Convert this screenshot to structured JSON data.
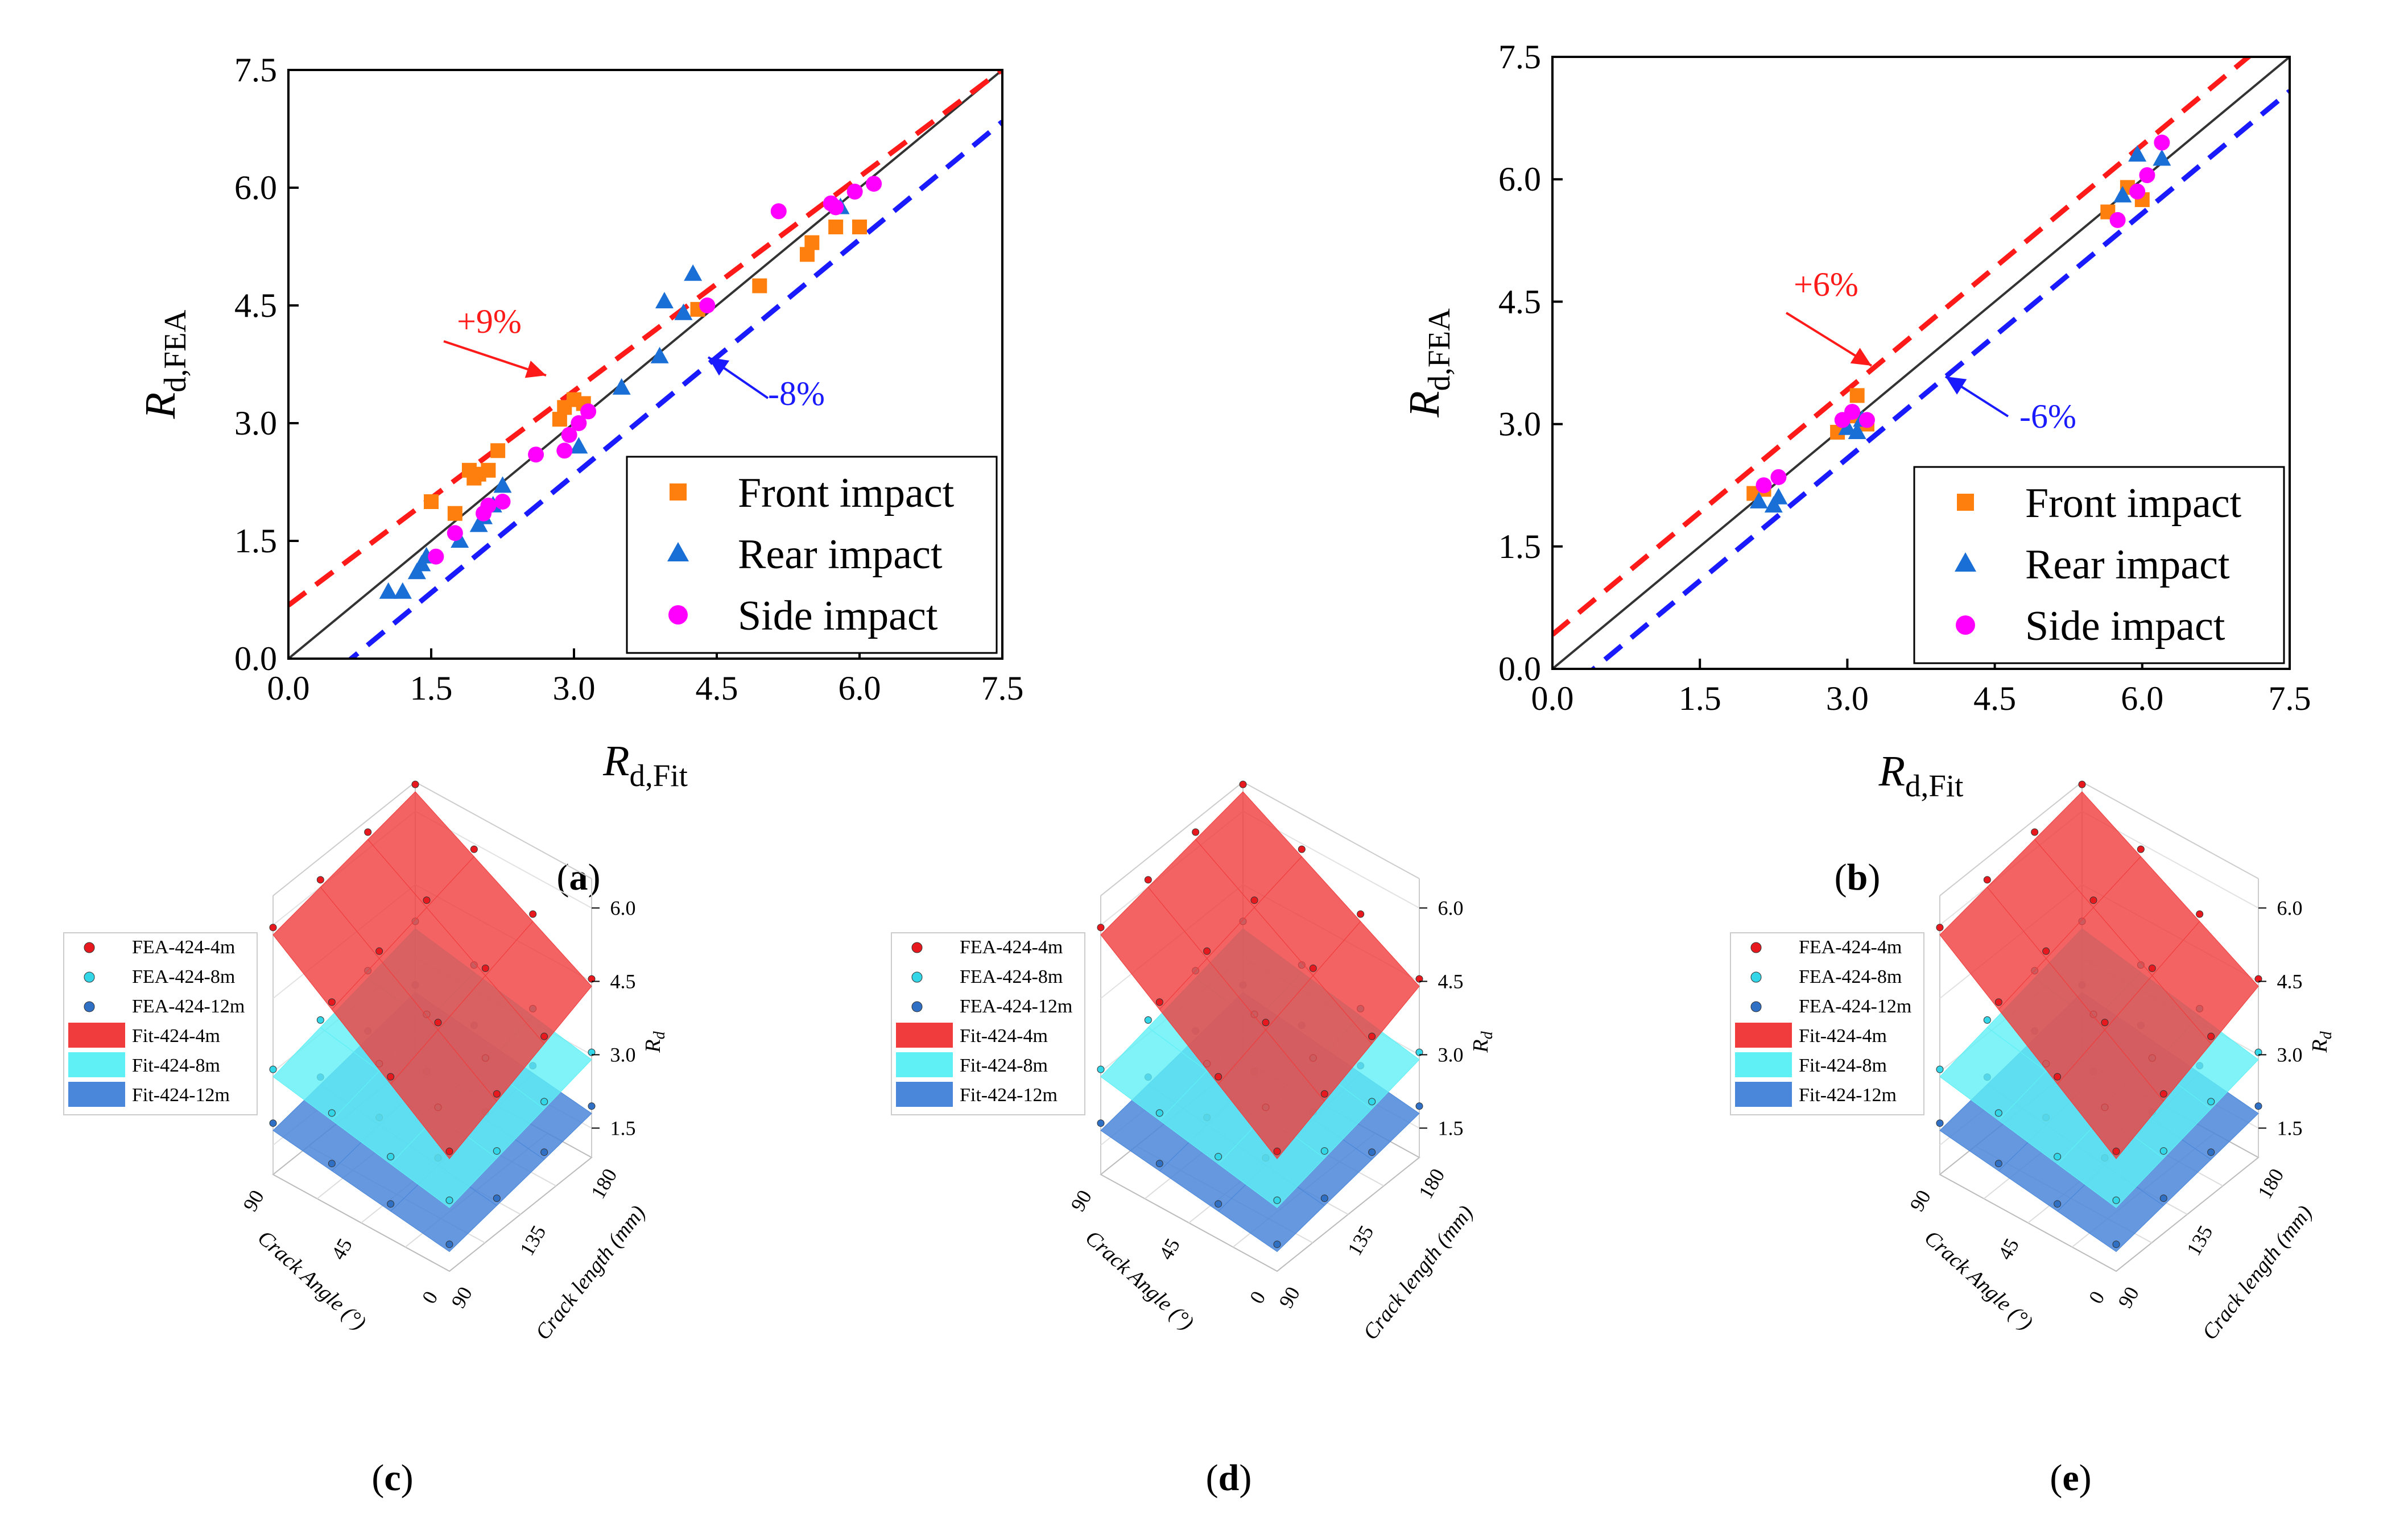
{
  "chart_data": [
    {
      "panel": "a",
      "type": "scatter",
      "caption_letter": "a",
      "xlabel": {
        "main": "R",
        "sub": "d,Fit"
      },
      "ylabel": {
        "main": "R",
        "sub": "d,FEA"
      },
      "xlim": [
        0,
        7.5
      ],
      "ylim": [
        0,
        7.5
      ],
      "xticks": [
        "0.0",
        "1.5",
        "3.0",
        "4.5",
        "6.0",
        "7.5"
      ],
      "yticks": [
        "0.0",
        "1.5",
        "3.0",
        "4.5",
        "6.0",
        "7.5"
      ],
      "legend_position": "bottom-right",
      "reference_lines": [
        {
          "label": "",
          "slope": 1.0,
          "intercept": 0,
          "style": "solid",
          "color": "#333333"
        },
        {
          "label": "+9%",
          "slope": 0.91,
          "intercept": 0.68,
          "style": "dashed",
          "color": "#ff1a1a"
        },
        {
          "label": "-8%",
          "slope": 1.0,
          "intercept": -0.66,
          "style": "dashed",
          "color": "#1a1aff"
        }
      ],
      "series": [
        {
          "name": "Front impact",
          "marker": "square",
          "color": "#ff7f0e",
          "points": [
            [
              1.5,
              2.0
            ],
            [
              1.75,
              1.85
            ],
            [
              1.9,
              2.4
            ],
            [
              1.95,
              2.3
            ],
            [
              2.0,
              2.35
            ],
            [
              2.1,
              2.4
            ],
            [
              2.2,
              2.65
            ],
            [
              2.85,
              3.05
            ],
            [
              2.9,
              3.2
            ],
            [
              3.0,
              3.3
            ],
            [
              3.1,
              3.25
            ],
            [
              4.3,
              4.45
            ],
            [
              4.95,
              4.75
            ],
            [
              5.45,
              5.15
            ],
            [
              5.5,
              5.3
            ],
            [
              5.75,
              5.5
            ],
            [
              6.0,
              5.5
            ]
          ]
        },
        {
          "name": "Rear impact",
          "marker": "triangle",
          "color": "#1a6fd6",
          "points": [
            [
              1.05,
              0.85
            ],
            [
              1.2,
              0.85
            ],
            [
              1.35,
              1.1
            ],
            [
              1.4,
              1.2
            ],
            [
              1.45,
              1.3
            ],
            [
              1.8,
              1.5
            ],
            [
              2.0,
              1.7
            ],
            [
              2.05,
              1.8
            ],
            [
              2.15,
              1.95
            ],
            [
              2.25,
              2.2
            ],
            [
              3.05,
              2.7
            ],
            [
              3.5,
              3.45
            ],
            [
              3.9,
              3.85
            ],
            [
              3.95,
              4.55
            ],
            [
              4.15,
              4.4
            ],
            [
              4.25,
              4.9
            ],
            [
              5.8,
              5.75
            ]
          ]
        },
        {
          "name": "Side impact",
          "marker": "circle",
          "color": "#ff00ff",
          "points": [
            [
              1.55,
              1.3
            ],
            [
              1.75,
              1.6
            ],
            [
              2.05,
              1.85
            ],
            [
              2.1,
              1.95
            ],
            [
              2.25,
              2.0
            ],
            [
              2.6,
              2.6
            ],
            [
              2.9,
              2.65
            ],
            [
              2.95,
              2.85
            ],
            [
              3.05,
              3.0
            ],
            [
              3.15,
              3.15
            ],
            [
              4.4,
              4.5
            ],
            [
              5.15,
              5.7
            ],
            [
              5.7,
              5.8
            ],
            [
              5.75,
              5.75
            ],
            [
              5.95,
              5.95
            ],
            [
              6.15,
              6.05
            ]
          ]
        }
      ]
    },
    {
      "panel": "b",
      "type": "scatter",
      "caption_letter": "b",
      "xlabel": {
        "main": "R",
        "sub": "d,Fit"
      },
      "ylabel": {
        "main": "R",
        "sub": "d,FEA"
      },
      "xlim": [
        0,
        7.5
      ],
      "ylim": [
        0,
        7.5
      ],
      "xticks": [
        "0.0",
        "1.5",
        "3.0",
        "4.5",
        "6.0",
        "7.5"
      ],
      "yticks": [
        "0.0",
        "1.5",
        "3.0",
        "4.5",
        "6.0",
        "7.5"
      ],
      "legend_position": "bottom-right",
      "reference_lines": [
        {
          "label": "",
          "slope": 1.0,
          "intercept": 0,
          "style": "solid",
          "color": "#333333"
        },
        {
          "label": "+6%",
          "slope": 1.0,
          "intercept": 0.42,
          "style": "dashed",
          "color": "#ff1a1a"
        },
        {
          "label": "-6%",
          "slope": 1.0,
          "intercept": -0.42,
          "style": "dashed",
          "color": "#1a1aff"
        }
      ],
      "series": [
        {
          "name": "Front impact",
          "marker": "square",
          "color": "#ff7f0e",
          "points": [
            [
              2.05,
              2.15
            ],
            [
              2.15,
              2.2
            ],
            [
              2.9,
              2.9
            ],
            [
              3.05,
              3.1
            ],
            [
              3.1,
              3.35
            ],
            [
              3.2,
              3.0
            ],
            [
              5.65,
              5.6
            ],
            [
              5.85,
              5.9
            ],
            [
              6.0,
              5.75
            ]
          ]
        },
        {
          "name": "Rear impact",
          "marker": "triangle",
          "color": "#1a6fd6",
          "points": [
            [
              2.1,
              2.05
            ],
            [
              2.25,
              2.0
            ],
            [
              2.3,
              2.1
            ],
            [
              3.0,
              2.95
            ],
            [
              3.1,
              2.9
            ],
            [
              3.15,
              3.05
            ],
            [
              5.8,
              5.8
            ],
            [
              5.95,
              6.3
            ],
            [
              6.2,
              6.25
            ]
          ]
        },
        {
          "name": "Side impact",
          "marker": "circle",
          "color": "#ff00ff",
          "points": [
            [
              2.15,
              2.25
            ],
            [
              2.3,
              2.35
            ],
            [
              2.95,
              3.05
            ],
            [
              3.05,
              3.15
            ],
            [
              3.2,
              3.05
            ],
            [
              5.75,
              5.5
            ],
            [
              5.95,
              5.85
            ],
            [
              6.05,
              6.05
            ],
            [
              6.2,
              6.45
            ]
          ]
        }
      ]
    },
    {
      "panel": "c",
      "type": "scatter3d",
      "caption_letter": "c",
      "legend": [
        "FEA-424-4m",
        "FEA-424-8m",
        "FEA-424-12m",
        "Fit-424-4m",
        "Fit-424-8m",
        "Fit-424-12m"
      ],
      "zlabel": "R",
      "zlabel_sub": "d",
      "xlabel": "Crack Angle (°)",
      "ylabel": "Crack length (mm)",
      "zticks": [
        "1.5",
        "3.0",
        "4.5",
        "6.0"
      ],
      "xticks": [
        "90",
        "45",
        "0"
      ],
      "yticks": [
        "90",
        "135",
        "180"
      ]
    },
    {
      "panel": "d",
      "type": "scatter3d",
      "caption_letter": "d",
      "legend": [
        "FEA-424-4m",
        "FEA-424-8m",
        "FEA-424-12m",
        "Fit-424-4m",
        "Fit-424-8m",
        "Fit-424-12m"
      ],
      "zlabel": "R",
      "zlabel_sub": "d",
      "xlabel": "Crack Angle (°)",
      "ylabel": "Crack length (mm)",
      "zticks": [
        "1.5",
        "3.0",
        "4.5",
        "6.0"
      ],
      "xticks": [
        "90",
        "45",
        "0"
      ],
      "yticks": [
        "90",
        "135",
        "180"
      ]
    },
    {
      "panel": "e",
      "type": "scatter3d",
      "caption_letter": "e",
      "legend": [
        "FEA-424-4m",
        "FEA-424-8m",
        "FEA-424-12m",
        "Fit-424-4m",
        "Fit-424-8m",
        "Fit-424-12m"
      ],
      "zlabel": "R",
      "zlabel_sub": "d",
      "xlabel": "Crack Angle (°)",
      "ylabel": "Crack length (mm)",
      "zticks": [
        "1.5",
        "3.0",
        "4.5",
        "6.0"
      ],
      "xticks": [
        "90",
        "45",
        "0"
      ],
      "yticks": [
        "90",
        "135",
        "180"
      ]
    }
  ],
  "colors": {
    "fea_4m": "#e8191e",
    "fea_8m": "#33d6e6",
    "fea_12m": "#2f6fc4",
    "fit_4m": "#f03c3c",
    "fit_8m": "#5ff0f5",
    "fit_12m": "#4a86d9",
    "upper_band": "#ff1a1a",
    "lower_band": "#1a1aff",
    "identity": "#333333"
  }
}
